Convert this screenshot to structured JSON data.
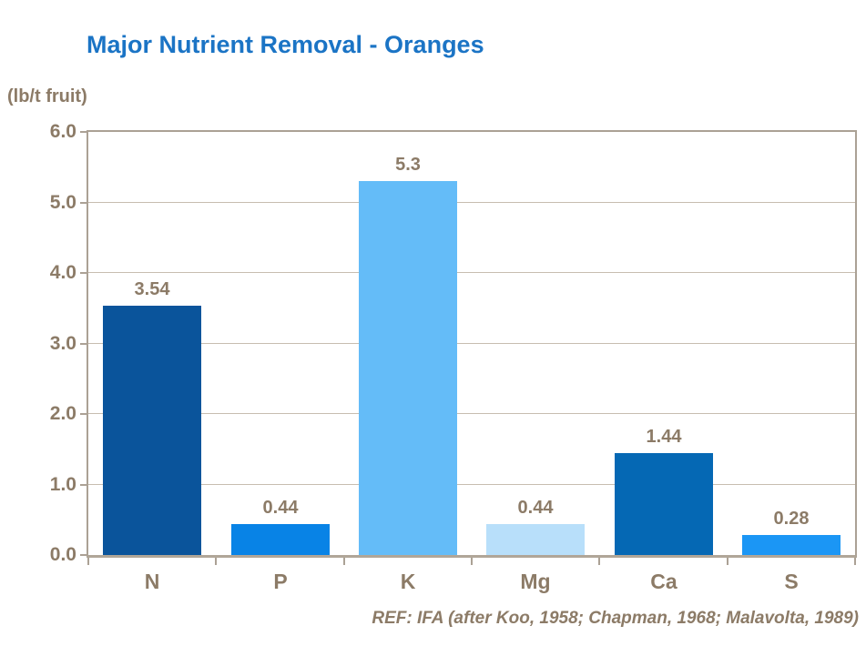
{
  "chart_data": {
    "type": "bar",
    "title": "Major Nutrient Removal - Oranges",
    "ylabel": "(lb/t fruit)",
    "xlabel": "",
    "categories": [
      "N",
      "P",
      "K",
      "Mg",
      "Ca",
      "S"
    ],
    "values": [
      3.54,
      0.44,
      5.3,
      0.44,
      1.44,
      0.28
    ],
    "value_labels": [
      "3.54",
      "0.44",
      "5.3",
      "0.44",
      "1.44",
      "0.28"
    ],
    "bar_colors": [
      "#0A549B",
      "#0883E6",
      "#64BCF8",
      "#B8DFFA",
      "#0568B4",
      "#1B96F5"
    ],
    "ylim": [
      0,
      6
    ],
    "ytick_labels": [
      "0.0",
      "1.0",
      "2.0",
      "3.0",
      "4.0",
      "5.0",
      "6.0"
    ],
    "grid": true,
    "legend": false,
    "reference": "REF: IFA (after Koo, 1958; Chapman, 1968; Malavolta, 1989)"
  },
  "colors": {
    "title_text": "#1B74C5",
    "axis_text": "#8C7B67",
    "plot_border": "#ABA195",
    "axis_line": "#B0A698",
    "gridline": "#C7BDB0",
    "background": "#ffffff"
  }
}
